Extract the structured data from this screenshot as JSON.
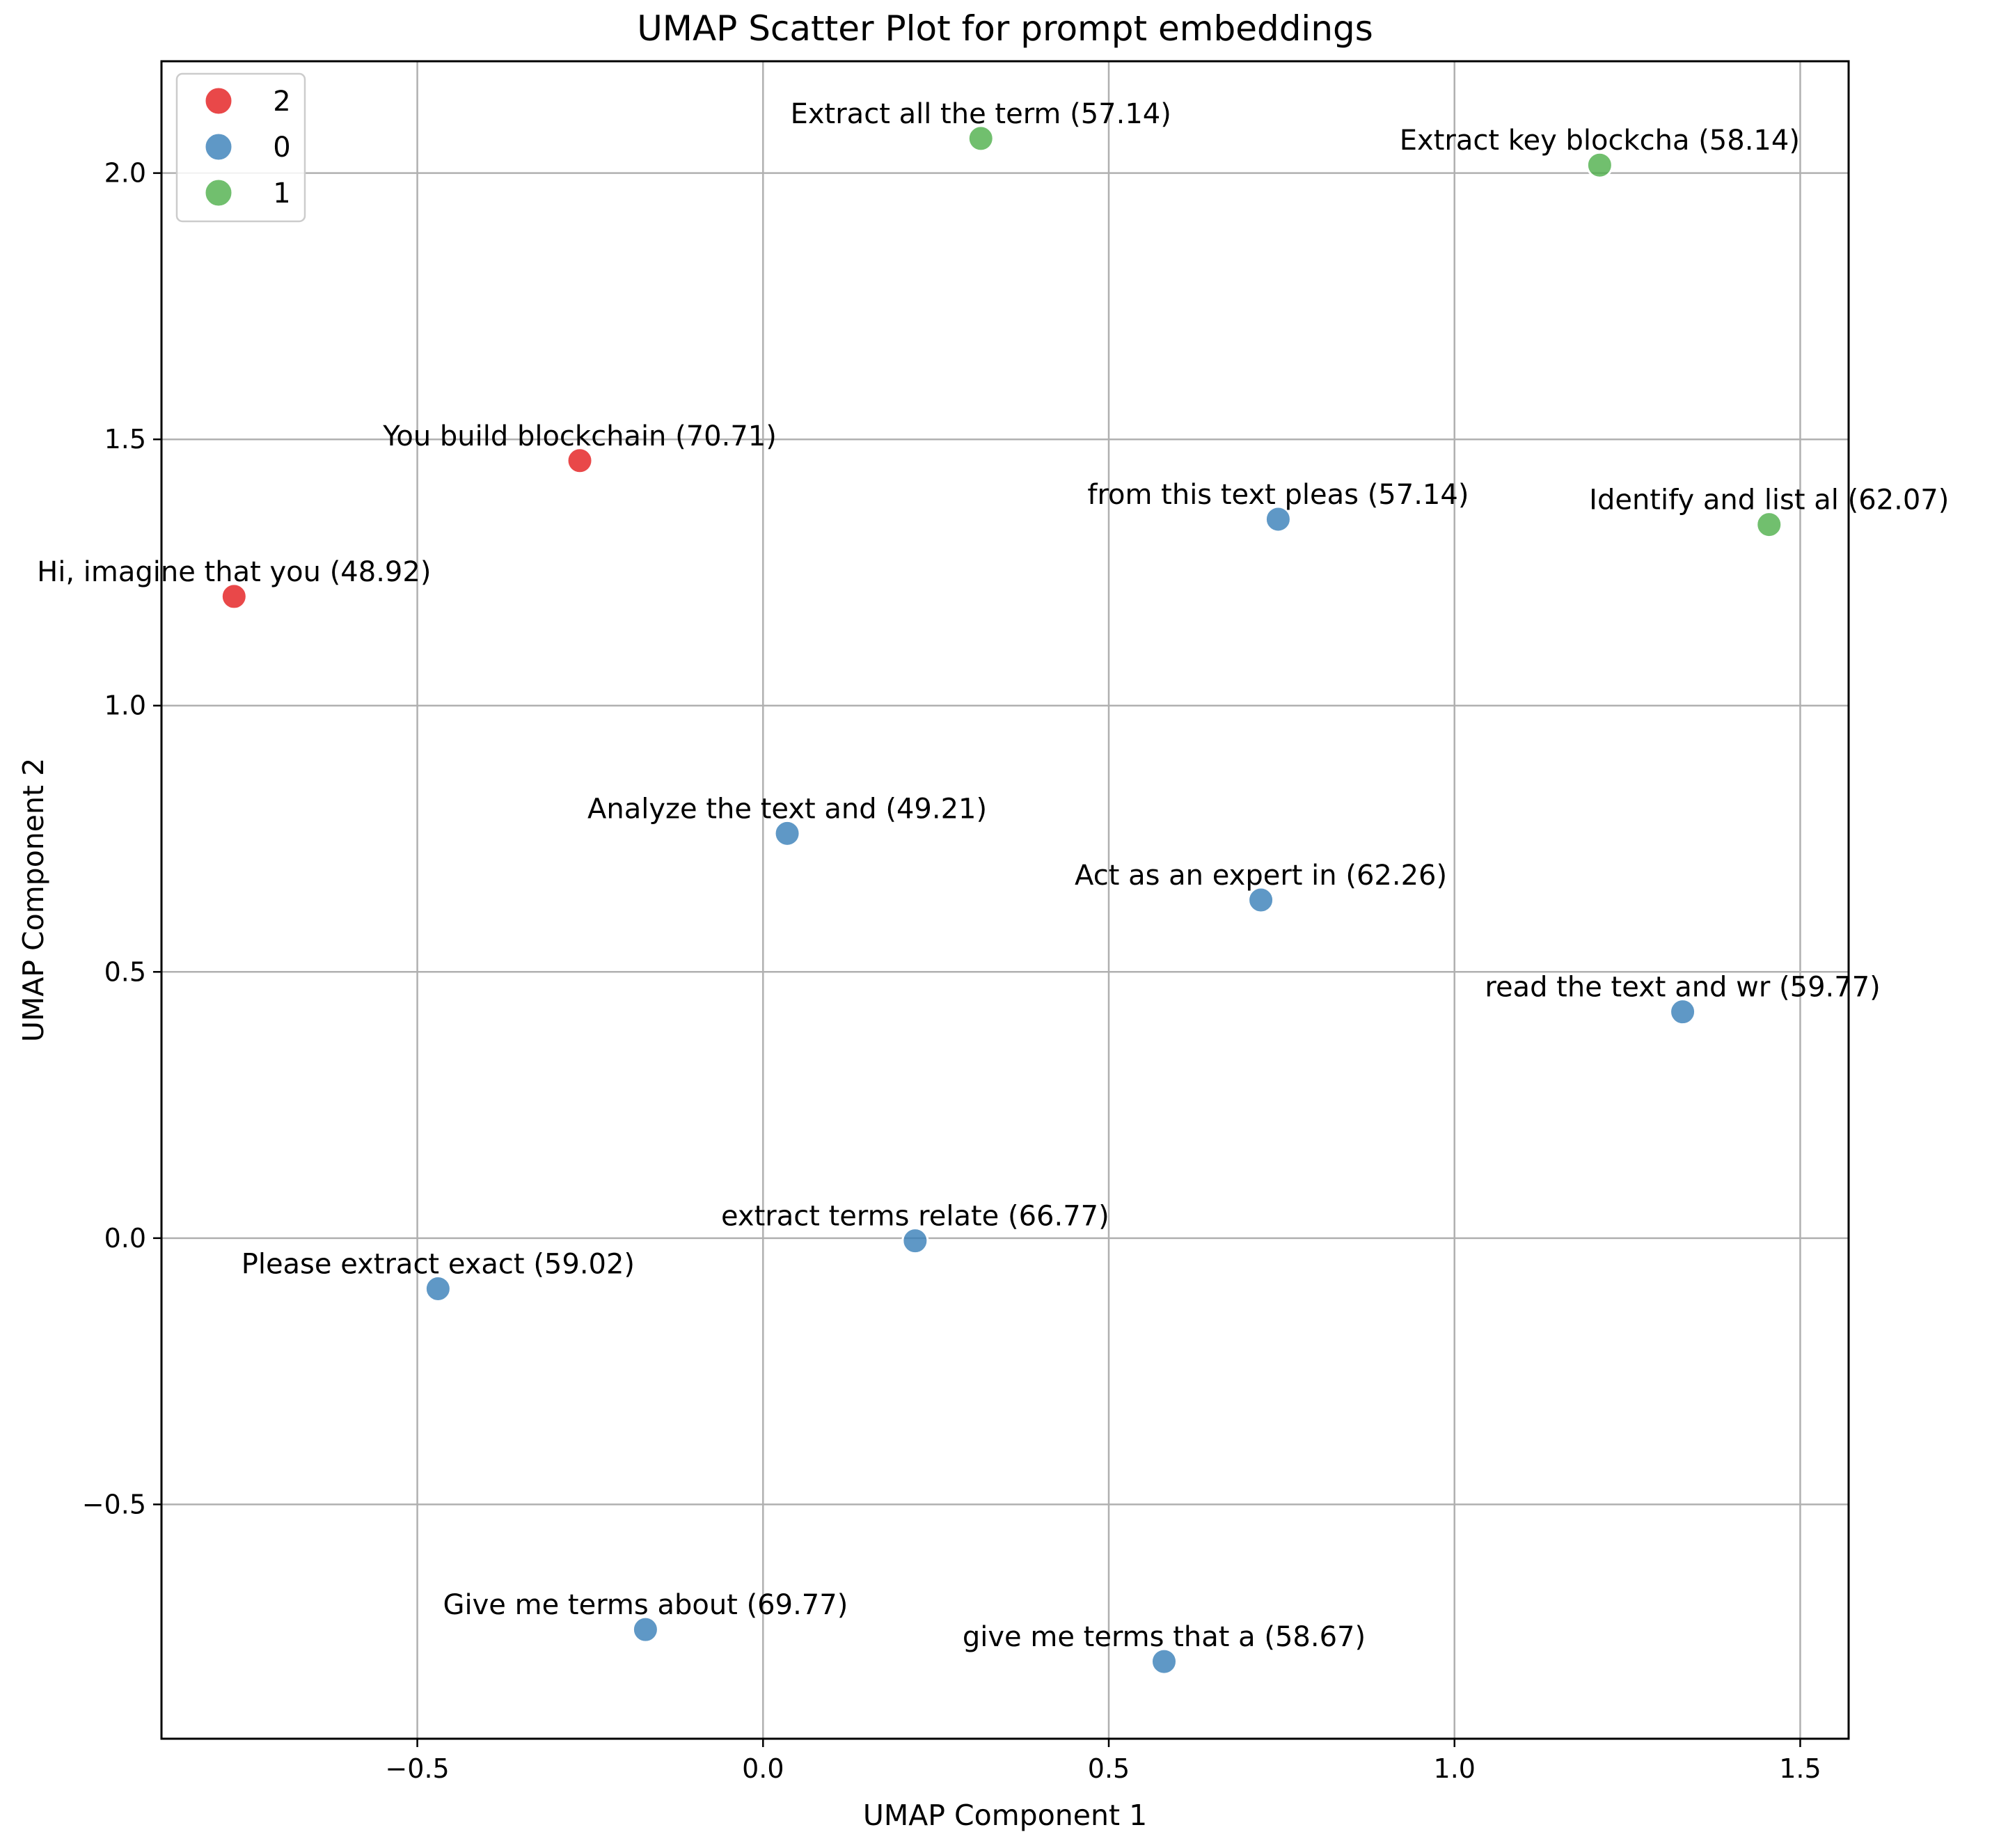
{
  "chart_data": {
    "type": "scatter",
    "title": "UMAP Scatter Plot for prompt embeddings",
    "xlabel": "UMAP Component 1",
    "ylabel": "UMAP Component 2",
    "xlim": [
      -0.87,
      1.57
    ],
    "ylim": [
      -0.94,
      2.21
    ],
    "grid": true,
    "legend_position": "top-left",
    "xticks": [
      -0.5,
      0.0,
      0.5,
      1.0,
      1.5
    ],
    "yticks": [
      -0.5,
      0.0,
      0.5,
      1.0,
      1.5,
      2.0
    ],
    "xtick_labels": [
      "−0.5",
      "0.0",
      "0.5",
      "1.0",
      "1.5"
    ],
    "ytick_labels": [
      "−0.5",
      "0.0",
      "0.5",
      "1.0",
      "1.5",
      "2.0"
    ],
    "legend": [
      {
        "label": "2",
        "color": "#e41a1c"
      },
      {
        "label": "0",
        "color": "#377eb8"
      },
      {
        "label": "1",
        "color": "#4daf4a"
      }
    ],
    "points": [
      {
        "x": 0.315,
        "y": 2.065,
        "cluster": "1",
        "label": "Extract all the term (57.14)"
      },
      {
        "x": 1.21,
        "y": 2.015,
        "cluster": "1",
        "label": "Extract key blockcha (58.14)"
      },
      {
        "x": -0.265,
        "y": 1.46,
        "cluster": "2",
        "label": "You build blockchain (70.71)"
      },
      {
        "x": 0.745,
        "y": 1.35,
        "cluster": "0",
        "label": "from this text pleas (57.14)"
      },
      {
        "x": 1.455,
        "y": 1.34,
        "cluster": "1",
        "label": "Identify and list al (62.07)"
      },
      {
        "x": -0.765,
        "y": 1.205,
        "cluster": "2",
        "label": "Hi, imagine that you (48.92)"
      },
      {
        "x": 0.035,
        "y": 0.76,
        "cluster": "0",
        "label": "Analyze the text and (49.21)"
      },
      {
        "x": 0.72,
        "y": 0.635,
        "cluster": "0",
        "label": "Act as an expert in  (62.26)"
      },
      {
        "x": 1.33,
        "y": 0.425,
        "cluster": "0",
        "label": "read the text and wr (59.77)"
      },
      {
        "x": 0.22,
        "y": -0.005,
        "cluster": "0",
        "label": "extract terms relate (66.77)"
      },
      {
        "x": -0.47,
        "y": -0.095,
        "cluster": "0",
        "label": "Please extract exact (59.02)"
      },
      {
        "x": -0.17,
        "y": -0.735,
        "cluster": "0",
        "label": "Give me terms about  (69.77)"
      },
      {
        "x": 0.58,
        "y": -0.795,
        "cluster": "0",
        "label": "give me terms that a (58.67)"
      }
    ]
  }
}
